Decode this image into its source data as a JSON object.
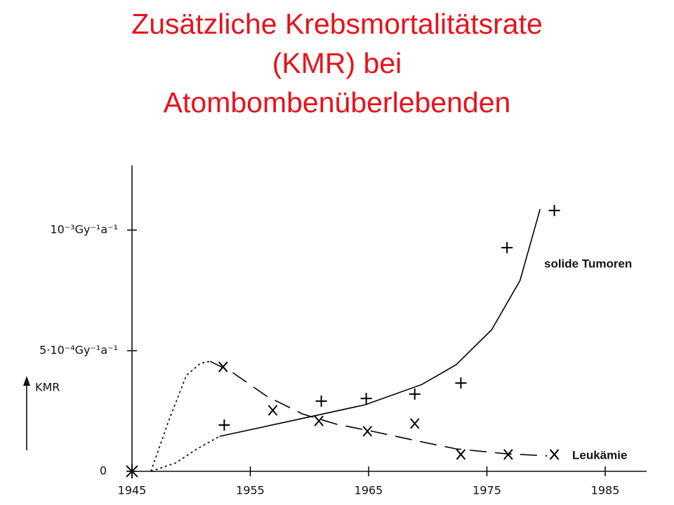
{
  "chart_data": {
    "type": "scatter",
    "title_lines": [
      "Zusätzliche Krebsmortalitätsrate",
      "(KMR) bei",
      "Atombombenüberlebenden"
    ],
    "y_label": "KMR",
    "xlim": [
      1945,
      1988.5
    ],
    "ylim": [
      0,
      0.00126
    ],
    "xticks": [
      1945,
      1955,
      1965,
      1975,
      1985
    ],
    "yticks": [
      0,
      {
        "value": 0.0005,
        "label": "5·10⁻⁴Gy⁻¹a⁻¹"
      },
      {
        "value": 0.001,
        "label": "10⁻³Gy⁻¹a⁻¹"
      }
    ],
    "series": [
      {
        "name": "solide Tumoren",
        "color": "#000000",
        "marker": "+",
        "x": [
          1952.8,
          1961.0,
          1964.8,
          1968.9,
          1972.8,
          1976.7,
          1980.7
        ],
        "values": [
          0.000192,
          0.000291,
          0.000302,
          0.00032,
          0.000366,
          0.000927,
          0.001081
        ],
        "extrapolation_x": [
          1946.6,
          1948.7,
          1950.5,
          1952.4
        ],
        "extrapolation_values": [
          0,
          3.5e-05,
          9.3e-05,
          0.000145
        ],
        "curve_x": [
          1952.4,
          1957.6,
          1964.7,
          1969.5,
          1972.4,
          1975.4,
          1977.8,
          1979.5
        ],
        "curve_values": [
          0.000145,
          0.0002,
          0.000276,
          0.00036,
          0.000442,
          0.000587,
          0.000791,
          0.001087
        ],
        "curve_style": "solid"
      },
      {
        "name": "Leukämie",
        "color": "#000000",
        "marker": "x",
        "x": [
          1952.7,
          1956.9,
          1960.8,
          1964.9,
          1968.9,
          1972.8,
          1976.8,
          1980.7
        ],
        "values": [
          0.000433,
          0.000253,
          0.000209,
          0.000166,
          0.000198,
          7e-05,
          7e-05,
          7e-05
        ],
        "extrapolation_x": [
          1946.6,
          1948.1,
          1949.6,
          1950.8,
          1951.6
        ],
        "extrapolation_values": [
          0,
          0.000209,
          0.000398,
          0.000448,
          0.000456
        ],
        "curve_x": [
          1951.6,
          1953.4,
          1956.4,
          1959.4,
          1962.3,
          1965.3,
          1969.5,
          1972.4,
          1976.6,
          1980.1
        ],
        "curve_values": [
          0.000456,
          0.000413,
          0.000311,
          0.000238,
          0.000195,
          0.000166,
          0.000122,
          9.3e-05,
          7.3e-05,
          6.4e-05
        ],
        "curve_style": "dashed"
      }
    ]
  }
}
